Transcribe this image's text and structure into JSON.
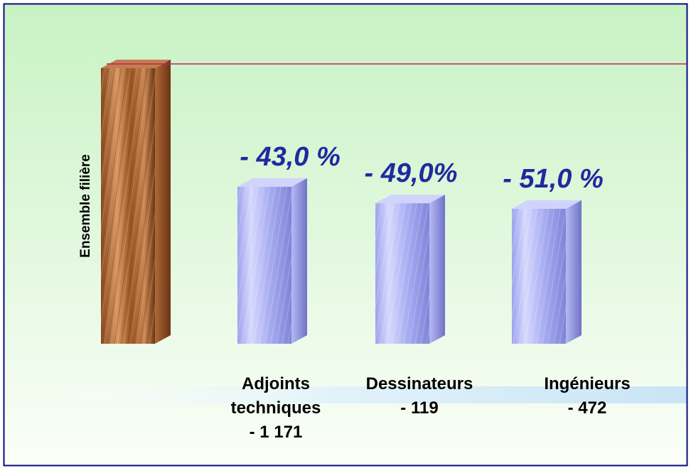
{
  "chart_data": {
    "type": "bar",
    "reference": {
      "name": "Ensemble filière",
      "value": 100
    },
    "categories": [
      {
        "label_lines": [
          "Adjoints",
          "techniques"
        ],
        "count_label": "- 1 171",
        "pct_label": "- 43,0 %",
        "value": 57.0
      },
      {
        "label_lines": [
          "Dessinateurs"
        ],
        "count_label": "- 119",
        "pct_label": "- 49,0%",
        "value": 51.0
      },
      {
        "label_lines": [
          "Ingénieurs"
        ],
        "count_label": "- 472",
        "pct_label": "- 51,0 %",
        "value": 49.0
      }
    ],
    "grid": false,
    "legend": "none"
  },
  "colors": {
    "border": "#0b0b80",
    "background_top": "#c8f2c4",
    "background_bottom": "#fbfef8",
    "reference_line": "#cc1a6b",
    "wood_dark": "#6e3a16",
    "wood_light": "#e3a06c",
    "bar_light": "#d0d4fb",
    "bar_mid": "#9a9ef0",
    "bar_dark": "#7074c8",
    "pct_text": "#1f2aa0",
    "label_text": "#000000"
  }
}
